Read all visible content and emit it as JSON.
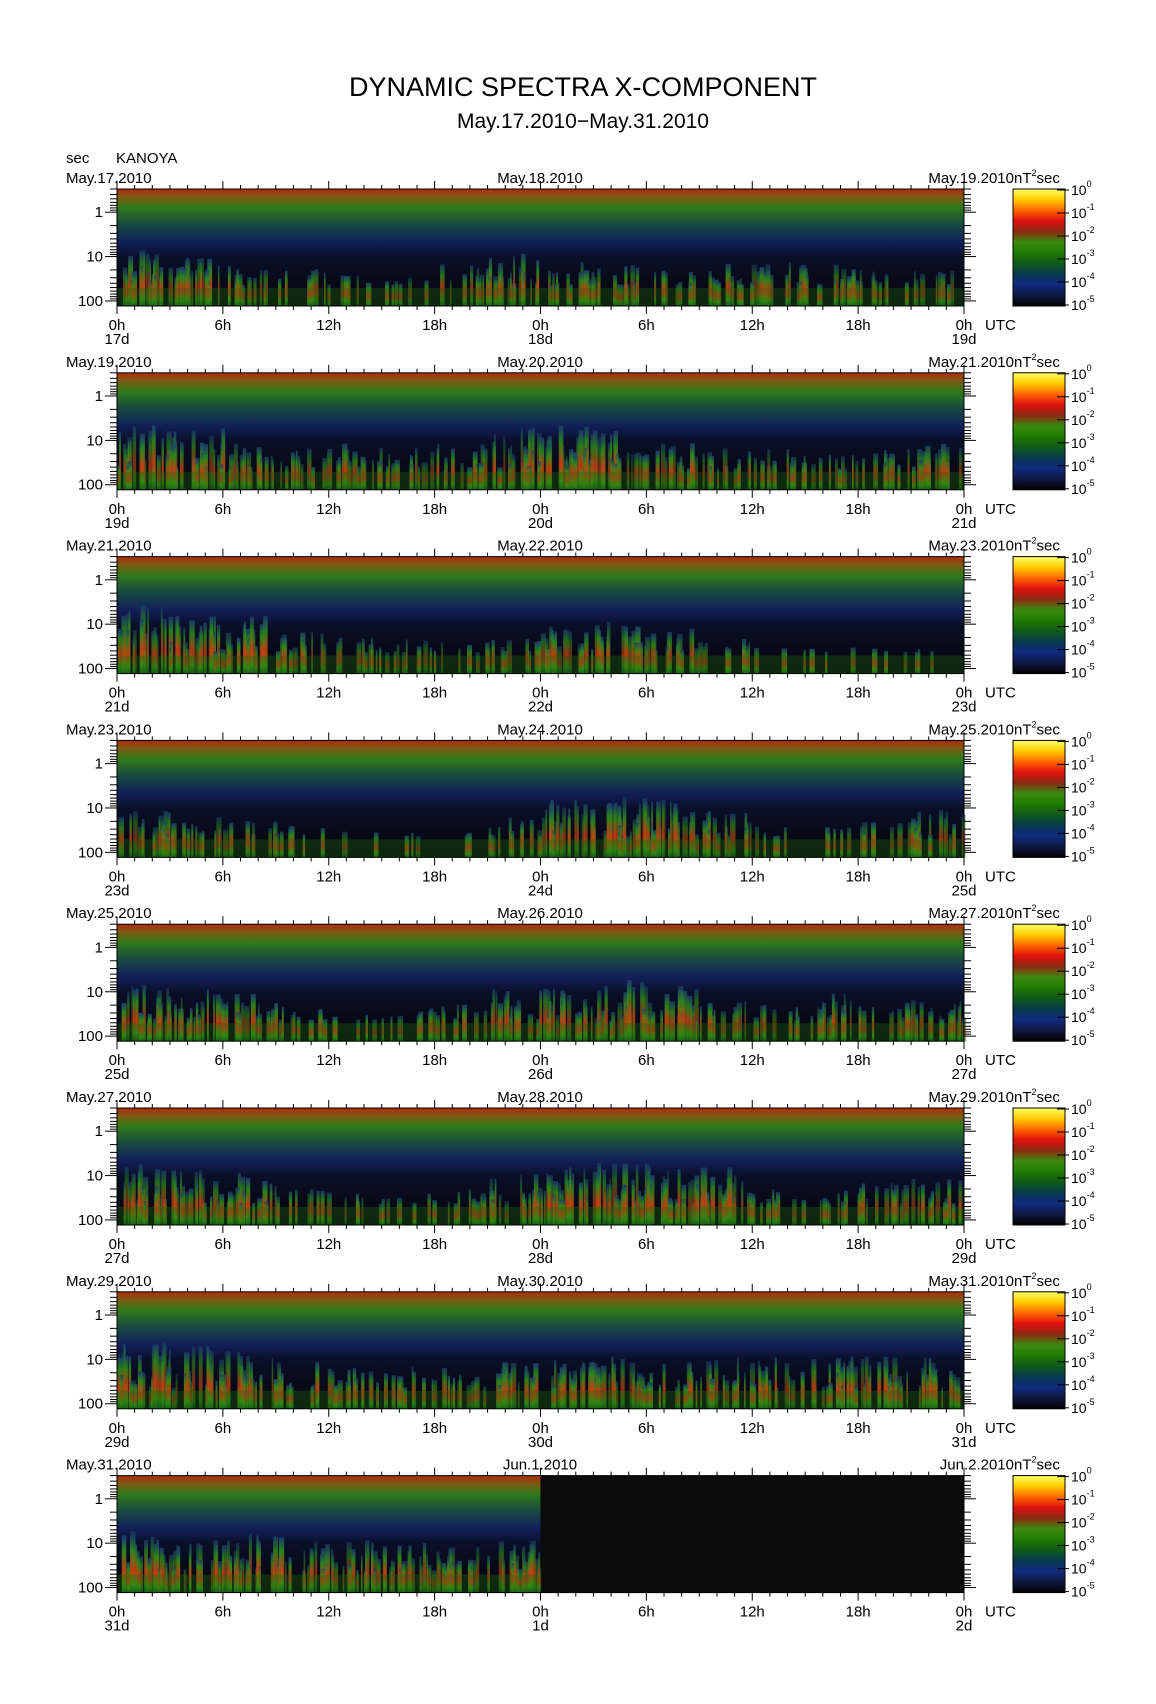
{
  "chart_data": {
    "type": "heatmap",
    "title": "DYNAMIC SPECTRA X-COMPONENT",
    "subtitle": "May.17.2010−May.31.2010",
    "station": "KANOYA",
    "yunit": "sec",
    "zunit": "nT",
    "zunit_suffix": "sec",
    "time_zone": "UTC",
    "y_ticks": [
      "1",
      "10",
      "100"
    ],
    "x_ticks": [
      "0h",
      "6h",
      "12h",
      "18h",
      "0h",
      "6h",
      "12h",
      "18h",
      "0h"
    ],
    "colorbar": {
      "labels": [
        "10",
        "10",
        "10",
        "10",
        "10",
        "10"
      ],
      "exponents": [
        "0",
        "-1",
        "-2",
        "-3",
        "-4",
        "-5"
      ],
      "stops": [
        "#ffff66",
        "#ffcc00",
        "#ff6600",
        "#e01010",
        "#8a2a10",
        "#3a8a10",
        "#207a00",
        "#105a1a",
        "#0a3a50",
        "#102a80",
        "#101840",
        "#000000"
      ]
    },
    "panels": [
      {
        "date_left": "May.17.2010",
        "date_mid": "May.18.2010",
        "date_right": "May.19.2010",
        "day_left": "17d",
        "day_mid": "18d",
        "day_right": "19d",
        "activity": [
          0.7,
          0.6,
          0.4,
          0.3,
          0.2,
          0.2,
          0.4,
          0.6,
          0.5,
          0.4,
          0.3,
          0.4,
          0.5,
          0.4,
          0.3,
          0.3
        ],
        "data_end": 1.0
      },
      {
        "date_left": "May.19.2010",
        "date_mid": "May.20.2010",
        "date_right": "May.21.2010",
        "day_left": "19d",
        "day_mid": "20d",
        "day_right": "21d",
        "activity": [
          0.9,
          0.8,
          0.5,
          0.4,
          0.5,
          0.4,
          0.5,
          0.8,
          0.9,
          0.8,
          0.5,
          0.4,
          0.4,
          0.3,
          0.4,
          0.5
        ],
        "data_end": 1.0
      },
      {
        "date_left": "May.21.2010",
        "date_mid": "May.22.2010",
        "date_right": "May.23.2010",
        "day_left": "21d",
        "day_mid": "22d",
        "day_right": "23d",
        "activity": [
          0.9,
          0.8,
          0.7,
          0.4,
          0.3,
          0.3,
          0.2,
          0.3,
          0.5,
          0.6,
          0.5,
          0.3,
          0.1,
          0.1,
          0.1,
          0.1
        ],
        "data_end": 1.0
      },
      {
        "date_left": "May.23.2010",
        "date_mid": "May.24.2010",
        "date_right": "May.25.2010",
        "day_left": "23d",
        "day_mid": "24d",
        "day_right": "25d",
        "activity": [
          0.5,
          0.4,
          0.3,
          0.2,
          0.1,
          0.1,
          0.1,
          0.4,
          0.7,
          0.8,
          0.7,
          0.5,
          0.2,
          0.2,
          0.3,
          0.5
        ],
        "data_end": 1.0
      },
      {
        "date_left": "May.25.2010",
        "date_mid": "May.26.2010",
        "date_right": "May.27.2010",
        "day_left": "25d",
        "day_mid": "26d",
        "day_right": "27d",
        "activity": [
          0.7,
          0.6,
          0.5,
          0.3,
          0.2,
          0.3,
          0.3,
          0.6,
          0.7,
          0.8,
          0.7,
          0.4,
          0.3,
          0.5,
          0.4,
          0.5
        ],
        "data_end": 1.0
      },
      {
        "date_left": "May.27.2010",
        "date_mid": "May.28.2010",
        "date_right": "May.29.2010",
        "day_left": "27d",
        "day_mid": "28d",
        "day_right": "29d",
        "activity": [
          0.8,
          0.7,
          0.6,
          0.3,
          0.2,
          0.2,
          0.3,
          0.6,
          0.7,
          0.8,
          0.7,
          0.7,
          0.3,
          0.3,
          0.4,
          0.5
        ],
        "data_end": 1.0
      },
      {
        "date_left": "May.29.2010",
        "date_mid": "May.30.2010",
        "date_right": "May.31.2010",
        "day_left": "29d",
        "day_mid": "30d",
        "day_right": "31d",
        "activity": [
          0.9,
          0.8,
          0.7,
          0.5,
          0.4,
          0.4,
          0.4,
          0.5,
          0.6,
          0.6,
          0.5,
          0.6,
          0.6,
          0.6,
          0.6,
          0.6
        ],
        "data_end": 1.0
      },
      {
        "date_left": "May.31.2010",
        "date_mid": "Jun.1.2010",
        "date_right": "Jun.2.2010",
        "day_left": "31d",
        "day_mid": "1d",
        "day_right": "2d",
        "activity": [
          0.8,
          0.7,
          0.8,
          0.7,
          0.6,
          0.6,
          0.6,
          0.6,
          0,
          0,
          0,
          0,
          0,
          0,
          0,
          0
        ],
        "data_end": 0.5
      }
    ]
  }
}
